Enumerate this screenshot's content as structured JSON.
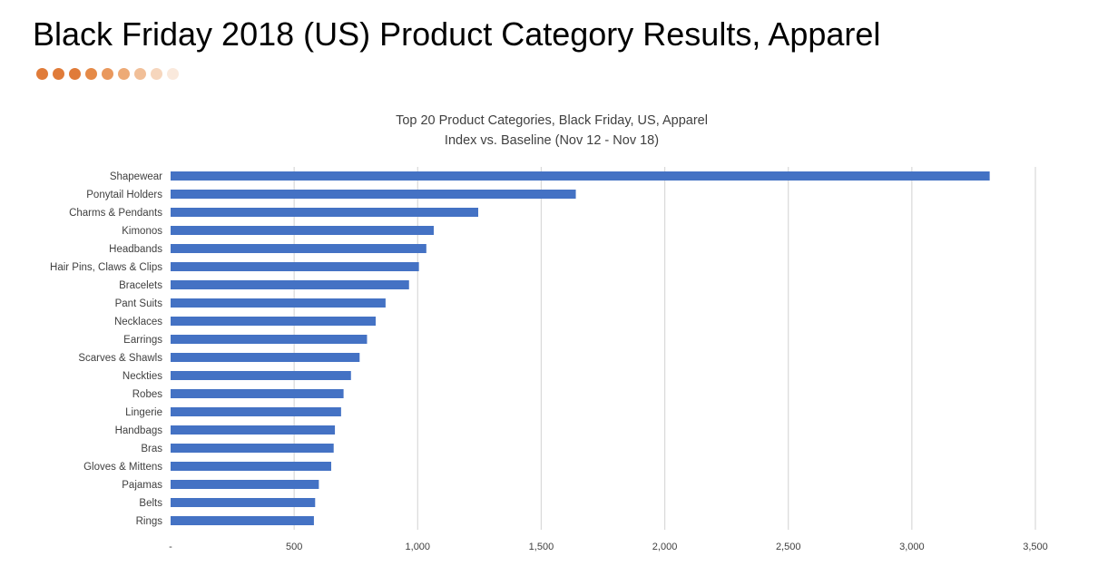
{
  "slide": {
    "title": "Black Friday 2018 (US) Product Category Results, Apparel",
    "dot_colors": [
      "#E07B39",
      "#E07B39",
      "#E07B39",
      "#E58A48",
      "#E9985D",
      "#EDAA76",
      "#F1BF98",
      "#F6D6BD",
      "#FAE9DC"
    ]
  },
  "chart_data": {
    "type": "bar",
    "orientation": "horizontal",
    "title": "Top 20 Product Categories, Black Friday, US, Apparel",
    "subtitle": "Index vs. Baseline (Nov 12 - Nov 18)",
    "categories": [
      "Shapewear",
      "Ponytail Holders",
      "Charms & Pendants",
      "Kimonos",
      "Headbands",
      "Hair Pins, Claws & Clips",
      "Bracelets",
      "Pant Suits",
      "Necklaces",
      "Earrings",
      "Scarves & Shawls",
      "Neckties",
      "Robes",
      "Lingerie",
      "Handbags",
      "Bras",
      "Gloves & Mittens",
      "Pajamas",
      "Belts",
      "Rings"
    ],
    "values": [
      3315,
      1640,
      1245,
      1065,
      1035,
      1005,
      965,
      870,
      830,
      795,
      765,
      730,
      700,
      690,
      665,
      660,
      650,
      600,
      585,
      580
    ],
    "xlim": [
      0,
      3500
    ],
    "x_ticks": [
      0,
      500,
      1000,
      1500,
      2000,
      2500,
      3000,
      3500
    ],
    "x_tick_labels": [
      "-",
      "500",
      "1,000",
      "1,500",
      "2,000",
      "2,500",
      "3,000",
      "3,500"
    ],
    "grid": true,
    "legend": "none",
    "bar_color": "#4472C4",
    "grid_color": "#D9D9D9"
  }
}
